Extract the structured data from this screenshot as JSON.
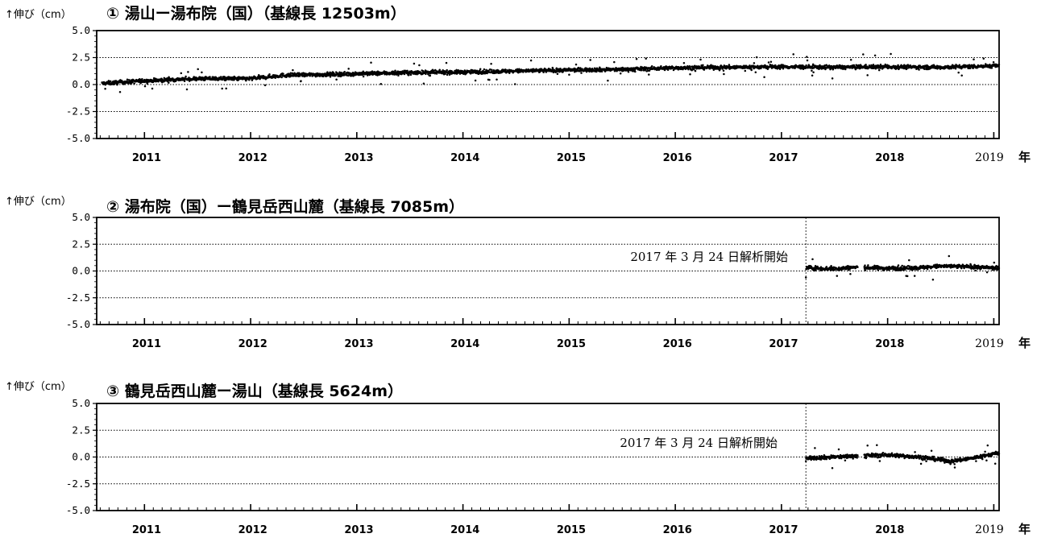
{
  "figure": {
    "x_unit_label": "年",
    "y_axis_label": "↑伸び（cm）"
  },
  "chart_data": [
    {
      "type": "scatter",
      "title": "① 湯山ー湯布院（国）（基線長 12503m）",
      "ylabel": "↑伸び（cm）",
      "xlabel": "年",
      "ylim": [
        -5.0,
        5.0
      ],
      "yticks": [
        "5.0",
        "2.5",
        "0.0",
        "-2.5",
        "-5.0"
      ],
      "xlim": [
        2010.55,
        2019.05
      ],
      "x_tick_labels": [
        "2011",
        "2012",
        "2013",
        "2014",
        "2015",
        "2016",
        "2017",
        "2018",
        "2019"
      ],
      "grid_y": [
        2.5,
        0.0,
        -2.5
      ],
      "annotation": "",
      "start_marker": null,
      "series": [
        {
          "x": [
            2010.6,
            2011.0,
            2011.5,
            2012.0,
            2012.3,
            2013.0,
            2013.5,
            2014.0,
            2014.5,
            2015.0,
            2015.5,
            2016.0,
            2016.5,
            2017.0,
            2017.5,
            2018.0,
            2018.5,
            2019.05
          ],
          "y": [
            0.1,
            0.35,
            0.55,
            0.55,
            0.85,
            1.0,
            1.1,
            1.15,
            1.25,
            1.35,
            1.4,
            1.55,
            1.6,
            1.65,
            1.6,
            1.65,
            1.6,
            1.75
          ]
        }
      ]
    },
    {
      "type": "scatter",
      "title": "② 湯布院（国）ー鶴見岳西山麓（基線長 7085m）",
      "ylabel": "↑伸び（cm）",
      "xlabel": "年",
      "ylim": [
        -5.0,
        5.0
      ],
      "yticks": [
        "5.0",
        "2.5",
        "0.0",
        "-2.5",
        "-5.0"
      ],
      "xlim": [
        2010.55,
        2019.05
      ],
      "x_tick_labels": [
        "2011",
        "2012",
        "2013",
        "2014",
        "2015",
        "2016",
        "2017",
        "2018",
        "2019"
      ],
      "grid_y": [
        2.5,
        0.0,
        -2.5
      ],
      "annotation": "2017 年 3 月 24 日解析開始",
      "start_marker": 2017.23,
      "series": [
        {
          "x": [
            2017.23,
            2017.5,
            2017.7,
            2018.0,
            2018.3,
            2018.5,
            2018.8,
            2019.05
          ],
          "y": [
            0.3,
            0.2,
            0.35,
            0.25,
            0.3,
            0.45,
            0.4,
            0.25
          ]
        }
      ]
    },
    {
      "type": "scatter",
      "title": "③ 鶴見岳西山麓ー湯山（基線長 5624m）",
      "ylabel": "↑伸び（cm）",
      "xlabel": "年",
      "ylim": [
        -5.0,
        5.0
      ],
      "yticks": [
        "5.0",
        "2.5",
        "0.0",
        "-2.5",
        "-5.0"
      ],
      "xlim": [
        2010.55,
        2019.05
      ],
      "x_tick_labels": [
        "2011",
        "2012",
        "2013",
        "2014",
        "2015",
        "2016",
        "2017",
        "2018",
        "2019"
      ],
      "grid_y": [
        2.5,
        0.0,
        -2.5
      ],
      "annotation": "2017 年 3 月 24 日解析開始",
      "start_marker": 2017.23,
      "series": [
        {
          "x": [
            2017.23,
            2017.5,
            2017.7,
            2018.0,
            2018.3,
            2018.6,
            2018.8,
            2019.05
          ],
          "y": [
            -0.1,
            0.0,
            0.1,
            0.2,
            0.0,
            -0.4,
            -0.1,
            0.4
          ]
        }
      ]
    }
  ]
}
